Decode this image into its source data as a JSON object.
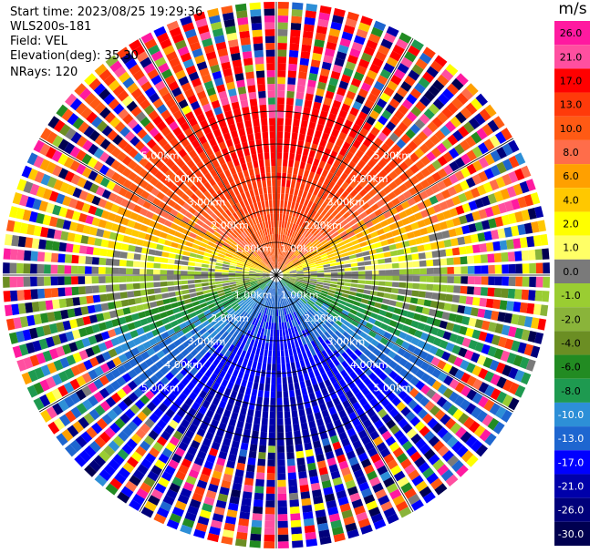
{
  "header": {
    "start_time": "Start time: 2023/08/25 19:29:36",
    "instrument": "WLS200s-181",
    "field": "Field: VEL",
    "elevation": "Elevation(deg): 35.30",
    "nrays": "NRays: 120"
  },
  "chart_data": {
    "type": "heatmap",
    "projection": "polar-ppi",
    "field": "VEL",
    "units": "m/s",
    "n_rays": 120,
    "max_range_km": 5.0,
    "range_rings_km": [
      1.0,
      2.0,
      3.0,
      4.0,
      5.0
    ],
    "range_ring_labels": [
      "1.00km",
      "2.00km",
      "3.00km",
      "4.00km",
      "5.00km"
    ],
    "spoke_angles_deg": [
      0,
      30,
      60,
      90,
      120,
      150,
      180,
      210,
      240,
      270,
      300,
      330
    ],
    "pattern": "Velocity increases toward north (+17 to +21 m/s), decreases toward south (-6 to -13 m/s); near-zero band along east-west; noisy values beyond about 3 km",
    "colorbar": {
      "title": "m/s",
      "ticks": [
        "26.0",
        "21.0",
        "17.0",
        "13.0",
        "10.0",
        "8.0",
        "6.0",
        "4.0",
        "2.0",
        "1.0",
        "0.0",
        "-1.0",
        "-2.0",
        "-4.0",
        "-6.0",
        "-8.0",
        "-10.0",
        "-13.0",
        "-17.0",
        "-21.0",
        "-26.0",
        "-30.0"
      ],
      "colors": [
        "#ff1aa0",
        "#ff4fa0",
        "#ff0000",
        "#ff3a0a",
        "#ff5a14",
        "#ff6d4a",
        "#ffa000",
        "#ffc800",
        "#ffff00",
        "#ffff66",
        "#7a7a7a",
        "#9acd32",
        "#8ab43a",
        "#6b8e23",
        "#228b22",
        "#1e9a50",
        "#2d8fd7",
        "#1e66d0",
        "#0000ff",
        "#0000aa",
        "#00007a",
        "#000050"
      ]
    }
  }
}
